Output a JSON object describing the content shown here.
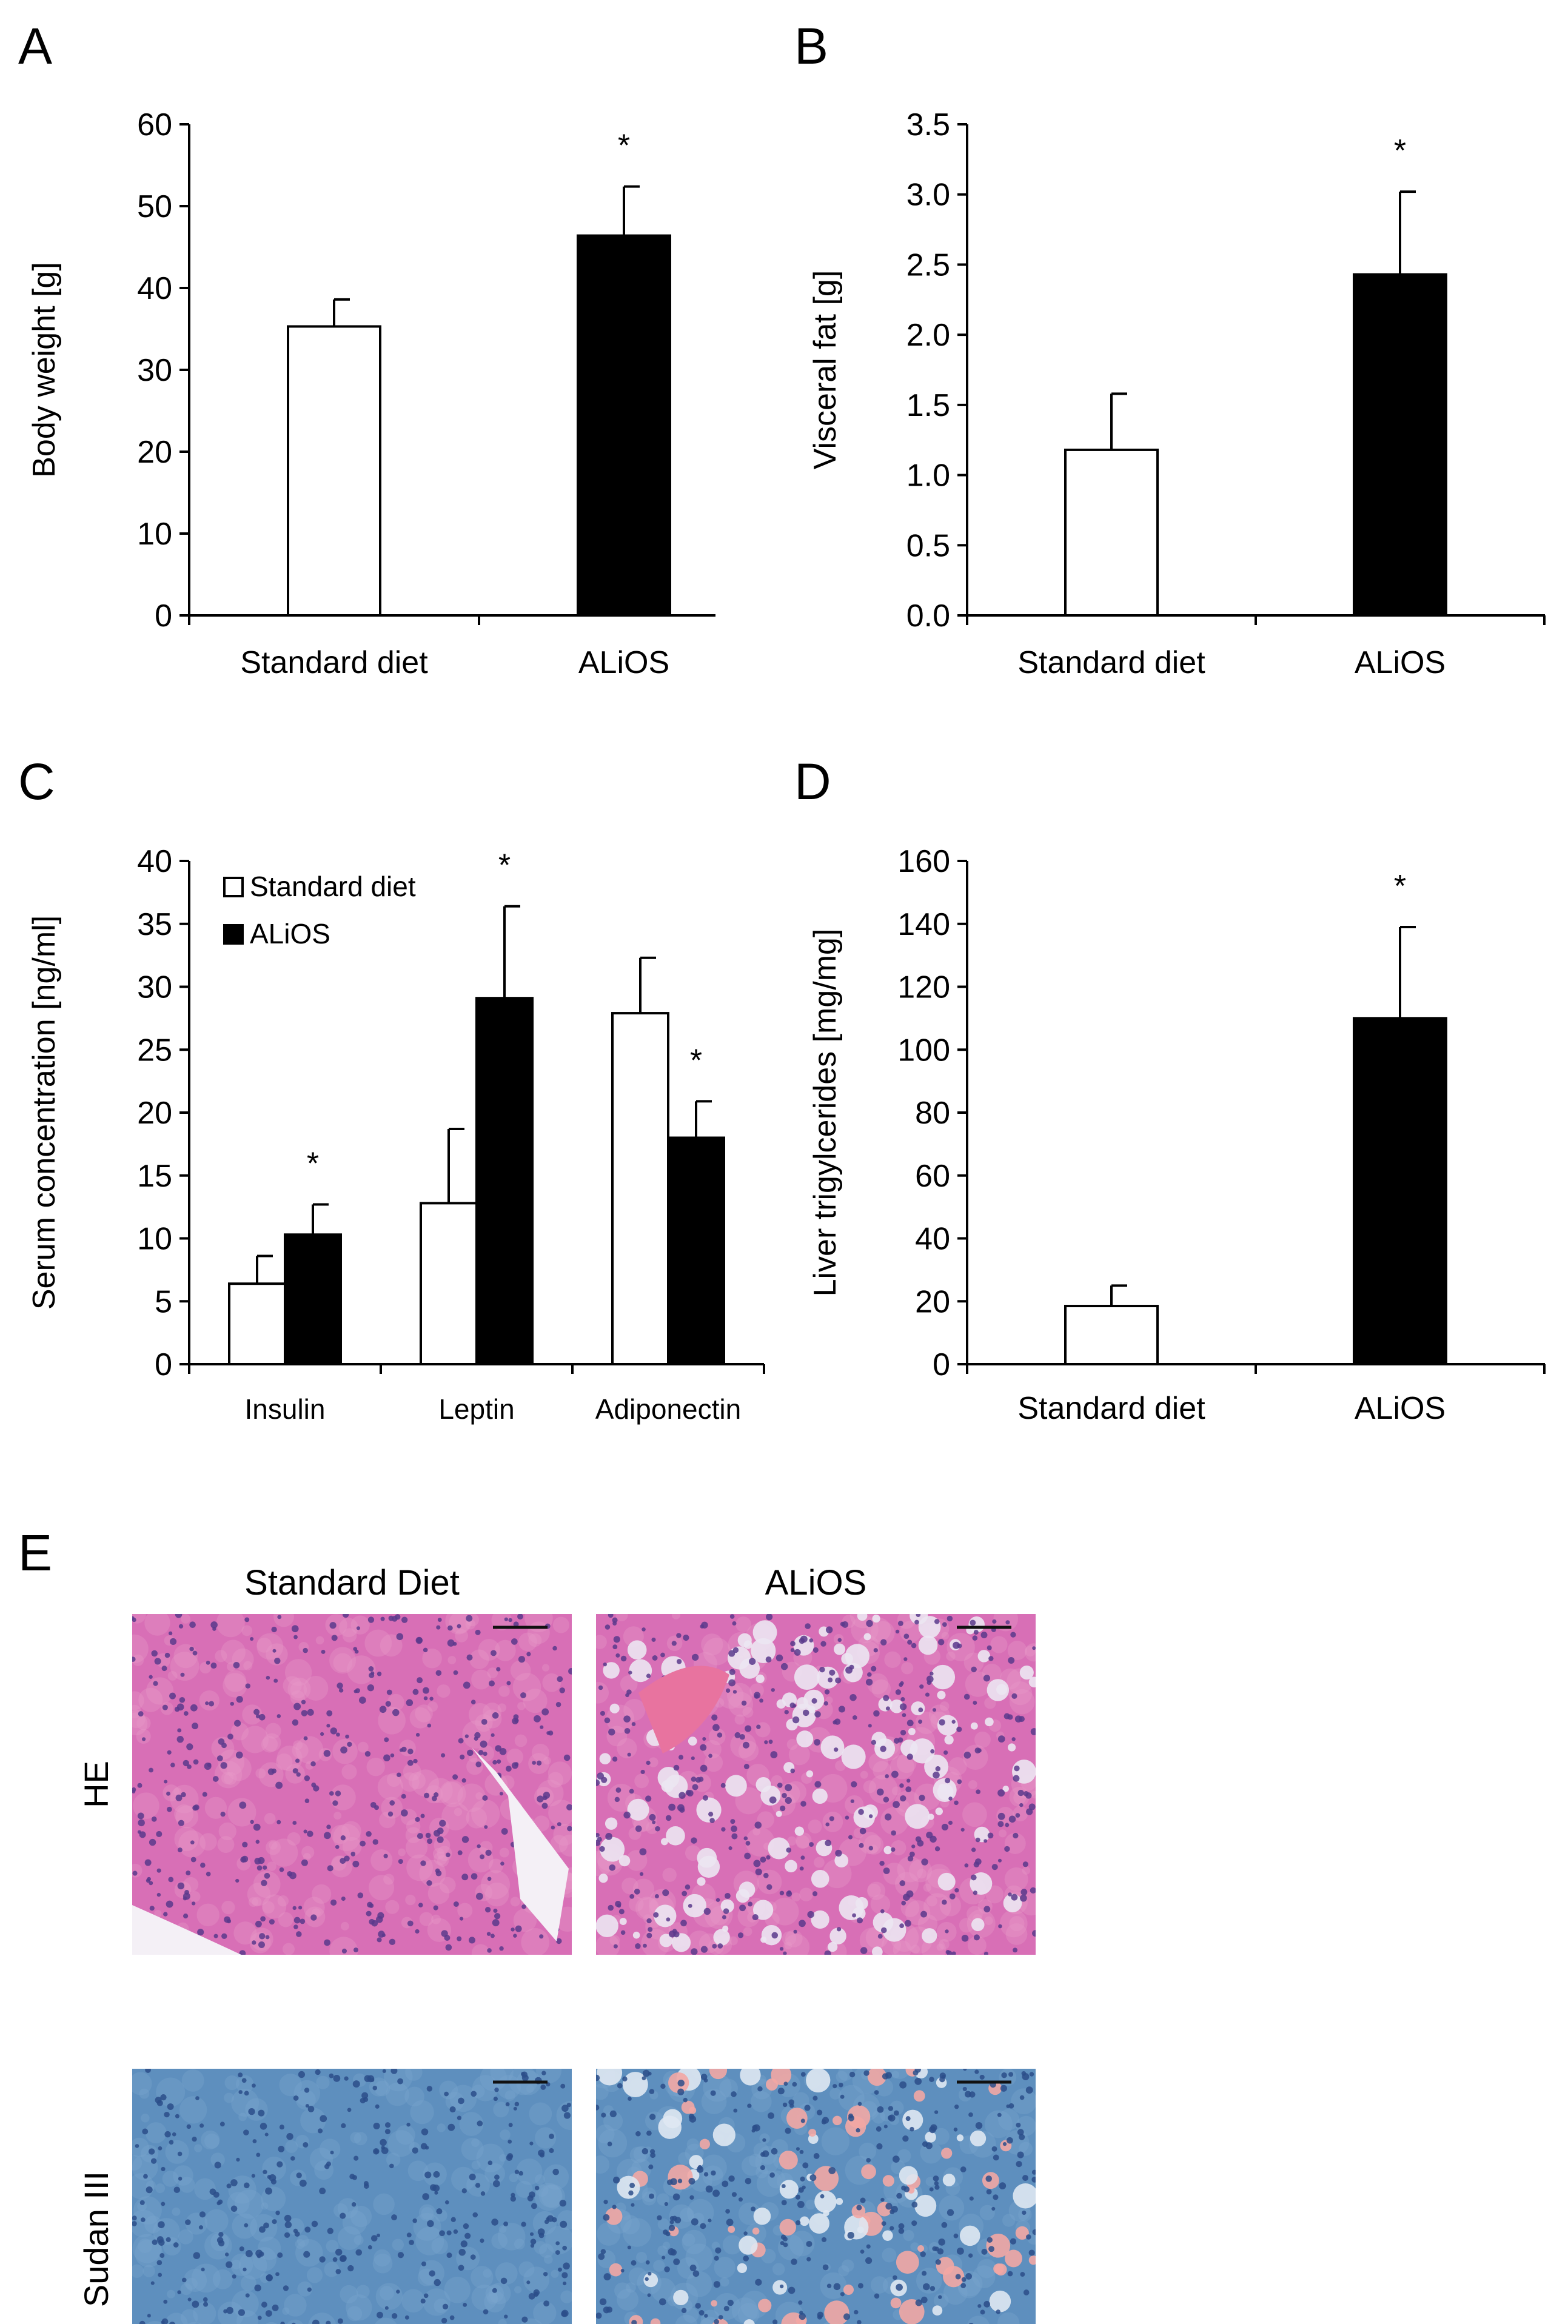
{
  "chart_data": [
    {
      "panel": "A",
      "type": "bar",
      "categories": [
        "Standard diet",
        "ALiOS"
      ],
      "values": [
        35.3,
        46.4
      ],
      "errors": [
        3.3,
        6.0
      ],
      "significance": [
        "",
        "*"
      ],
      "fills": [
        "#ffffff",
        "#000000"
      ],
      "ylabel": "Body weight [g]",
      "ylim": [
        0,
        60
      ],
      "yticks": [
        "0",
        "10",
        "20",
        "30",
        "40",
        "50",
        "60"
      ]
    },
    {
      "panel": "B",
      "type": "bar",
      "categories": [
        "Standard diet",
        "ALiOS"
      ],
      "values": [
        1.18,
        2.43
      ],
      "errors": [
        0.4,
        0.59
      ],
      "significance": [
        "",
        "*"
      ],
      "fills": [
        "#ffffff",
        "#000000"
      ],
      "ylabel": "Visceral fat [g]",
      "ylim": [
        0,
        3.5
      ],
      "yticks": [
        "0.0",
        "0.5",
        "1.0",
        "1.5",
        "2.0",
        "2.5",
        "3.0",
        "3.5"
      ]
    },
    {
      "panel": "C",
      "type": "bar",
      "categories": [
        "Insulin",
        "Leptin",
        "Adiponectin"
      ],
      "series": [
        {
          "name": "Standard diet",
          "values": [
            6.4,
            12.8,
            27.9
          ],
          "errors": [
            2.2,
            5.9,
            4.4
          ],
          "significance": [
            "",
            "",
            ""
          ],
          "fill": "#ffffff"
        },
        {
          "name": "ALiOS",
          "values": [
            10.3,
            29.1,
            18.0
          ],
          "errors": [
            2.4,
            7.3,
            2.9
          ],
          "significance": [
            "*",
            "*",
            "*"
          ],
          "fill": "#000000"
        }
      ],
      "ylabel": "Serum concentration [ng/ml]",
      "ylim": [
        0,
        40
      ],
      "yticks": [
        "0",
        "5",
        "10",
        "15",
        "20",
        "25",
        "30",
        "35",
        "40"
      ],
      "legend": "top-left"
    },
    {
      "panel": "D",
      "type": "bar",
      "categories": [
        "Standard diet",
        "ALiOS"
      ],
      "values": [
        18.5,
        110
      ],
      "errors": [
        6.5,
        29
      ],
      "significance": [
        "",
        "*"
      ],
      "fills": [
        "#ffffff",
        "#000000"
      ],
      "ylabel": "Liver trigylcerides [mg/mg]",
      "ylim": [
        0,
        160
      ],
      "yticks": [
        "0",
        "20",
        "40",
        "60",
        "80",
        "100",
        "120",
        "140",
        "160"
      ]
    }
  ],
  "histology": {
    "panel": "E",
    "columns": [
      "Standard Diet",
      "ALiOS"
    ],
    "rows": [
      "HE",
      "Sudan III"
    ],
    "colors": {
      "he_bg": "#d86fb6",
      "he_nuclei": "#5b3a8c",
      "sudan_bg": "#5e8fbe",
      "sudan_nuclei": "#2b4d8a",
      "sudan_lipid": "#f2a7a4",
      "vacuole": "#ece6f2"
    }
  }
}
